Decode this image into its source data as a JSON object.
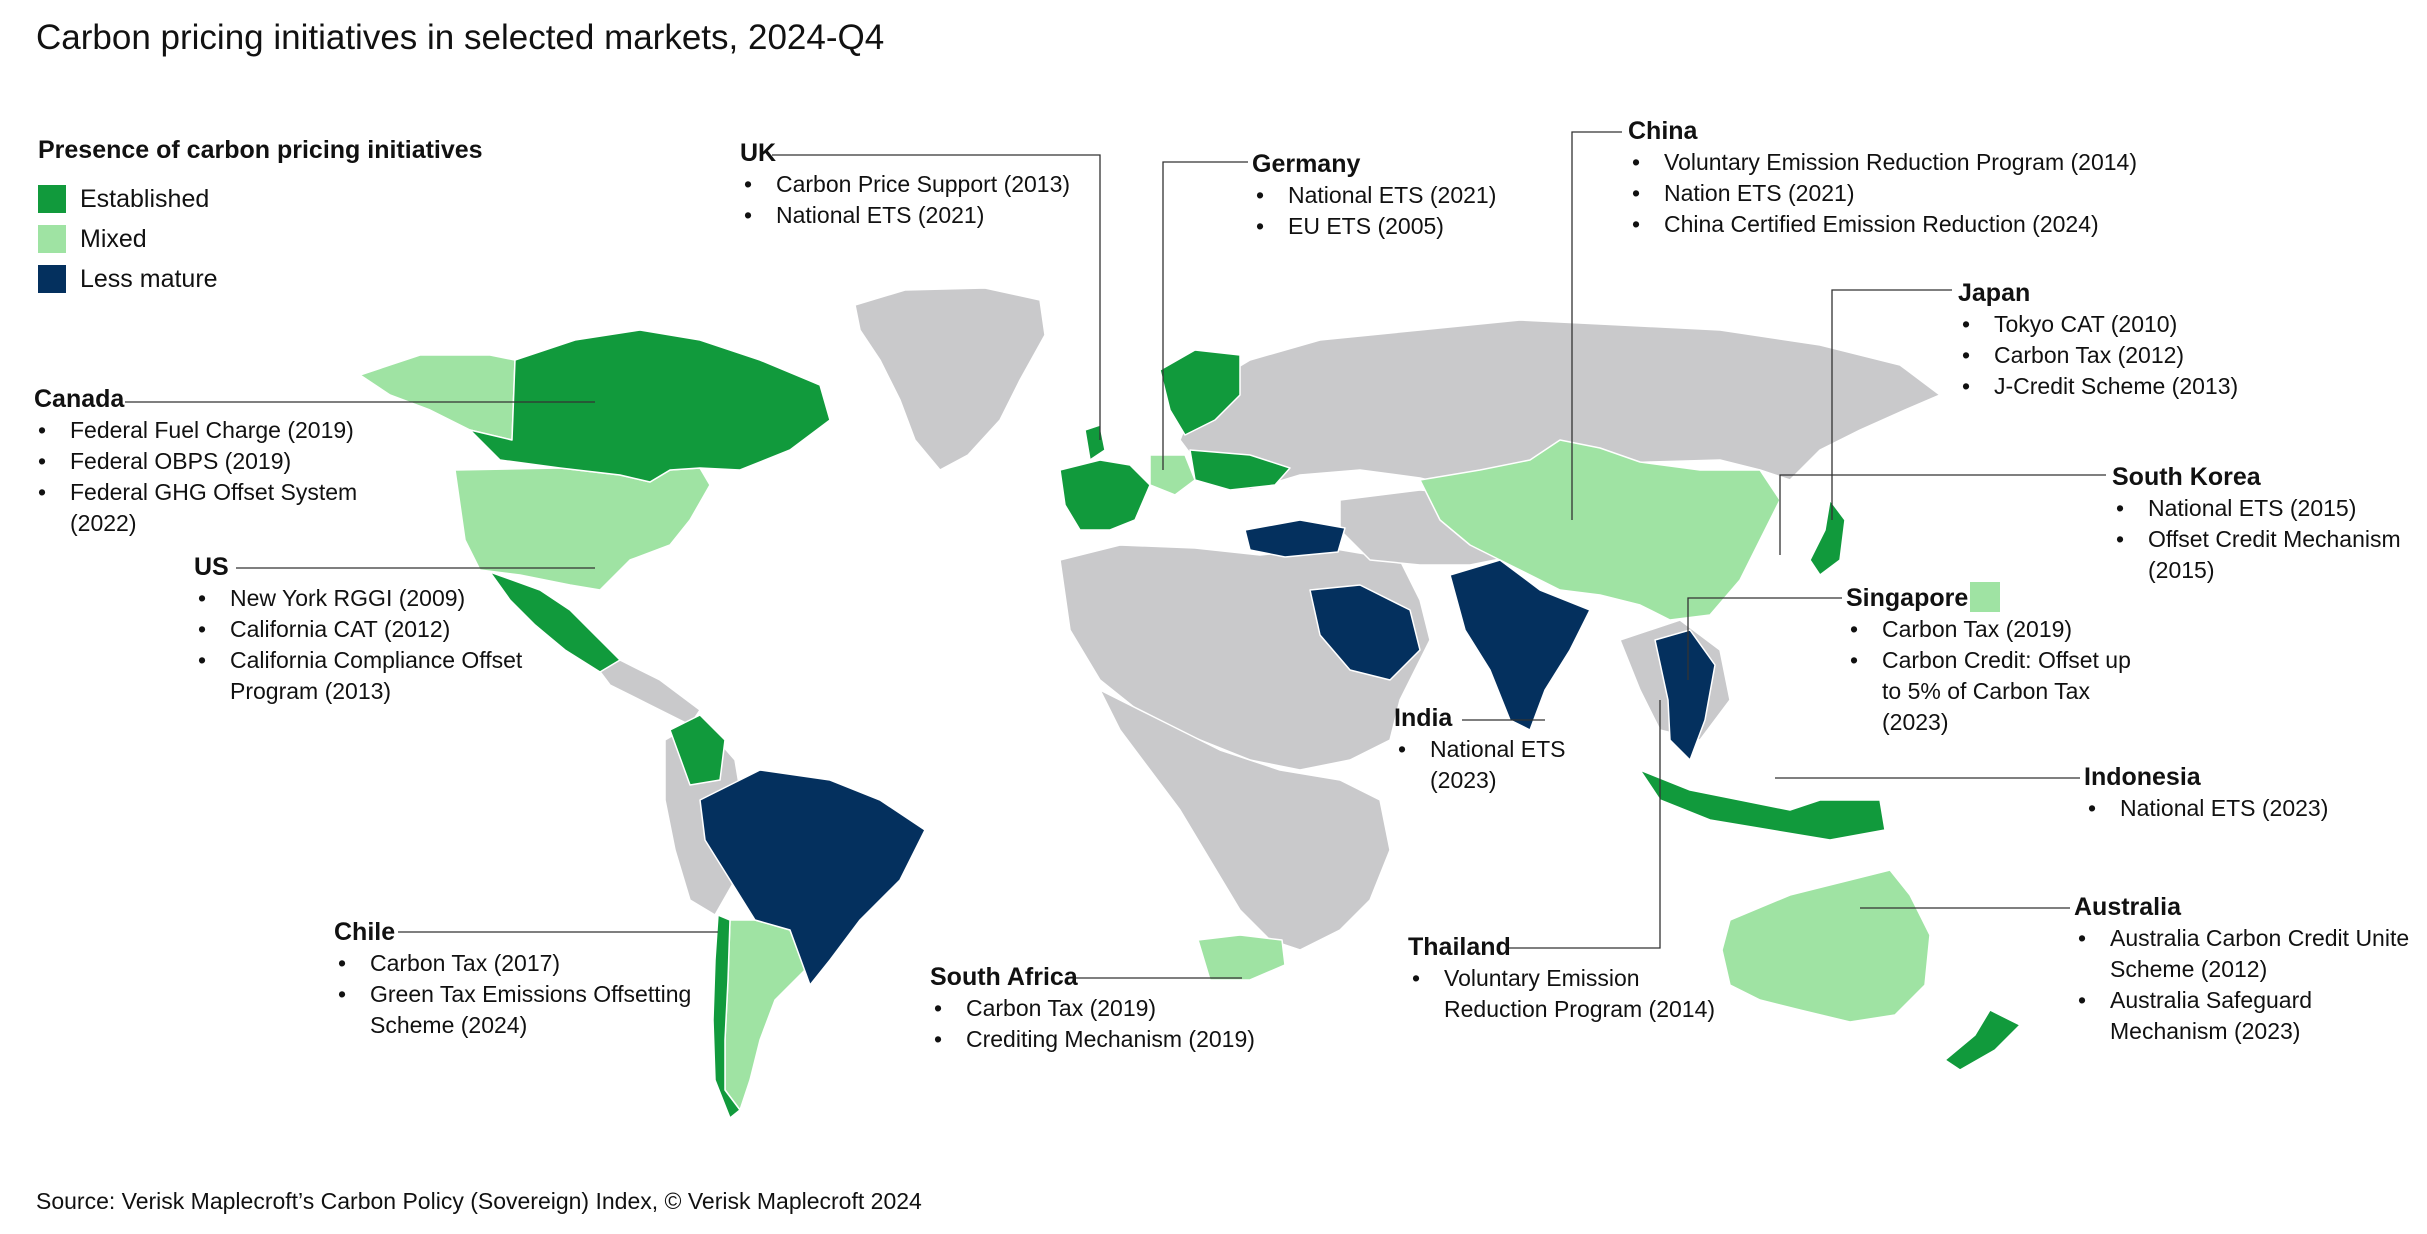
{
  "title": "Carbon pricing initiatives in selected markets, 2024-Q4",
  "legend": {
    "title": "Presence of carbon pricing initiatives",
    "items": [
      {
        "label": "Established",
        "color": "#119a3c"
      },
      {
        "label": "Mixed",
        "color": "#9fe3a3"
      },
      {
        "label": "Less mature",
        "color": "#04305e"
      }
    ]
  },
  "colors": {
    "established": "#119a3c",
    "mixed": "#9fe3a3",
    "less_mature": "#04305e",
    "no_data": "#c9c9cb"
  },
  "callouts": {
    "uk": {
      "title": "UK",
      "items": [
        "Carbon Price Support (2013)",
        "National ETS (2021)"
      ]
    },
    "germany": {
      "title": "Germany",
      "items": [
        "National ETS (2021)",
        "EU ETS (2005)"
      ]
    },
    "china": {
      "title": "China",
      "items": [
        "Voluntary Emission Reduction Program (2014)",
        "Nation ETS (2021)",
        "China Certified Emission Reduction (2024)"
      ]
    },
    "japan": {
      "title": "Japan",
      "items": [
        "Tokyo CAT (2010)",
        "Carbon Tax (2012)",
        "J-Credit Scheme (2013)"
      ]
    },
    "canada": {
      "title": "Canada",
      "items": [
        "Federal Fuel Charge (2019)",
        "Federal OBPS (2019)",
        "Federal GHG Offset System (2022)"
      ]
    },
    "south_korea": {
      "title": "South Korea",
      "items": [
        "National ETS (2015)",
        "Offset Credit Mechanism (2015)"
      ]
    },
    "us": {
      "title": "US",
      "items": [
        "New York RGGI (2009)",
        "California CAT (2012)",
        "California Compliance Offset Program (2013)"
      ]
    },
    "singapore": {
      "title": "Singapore",
      "items": [
        "Carbon Tax (2019)",
        "Carbon Credit: Offset up to 5% of Carbon Tax (2023)"
      ]
    },
    "india": {
      "title": "India",
      "items": [
        "National ETS (2023)"
      ]
    },
    "indonesia": {
      "title": "Indonesia",
      "items": [
        "National ETS (2023)"
      ]
    },
    "chile": {
      "title": "Chile",
      "items": [
        "Carbon Tax (2017)",
        "Green Tax Emissions Offsetting Scheme (2024)"
      ]
    },
    "australia": {
      "title": "Australia",
      "items": [
        "Australia Carbon Credit Unite Scheme (2012)",
        "Australia Safeguard Mechanism (2023)"
      ]
    },
    "thailand": {
      "title": "Thailand",
      "items": [
        "Voluntary Emission Reduction Program (2014)"
      ]
    },
    "south_africa": {
      "title": "South Africa",
      "items": [
        "Carbon Tax (2019)",
        "Crediting Mechanism (2019)"
      ]
    }
  },
  "source": "Source: Verisk Maplecroft’s Carbon Policy (Sovereign) Index, © Verisk Maplecroft 2024"
}
